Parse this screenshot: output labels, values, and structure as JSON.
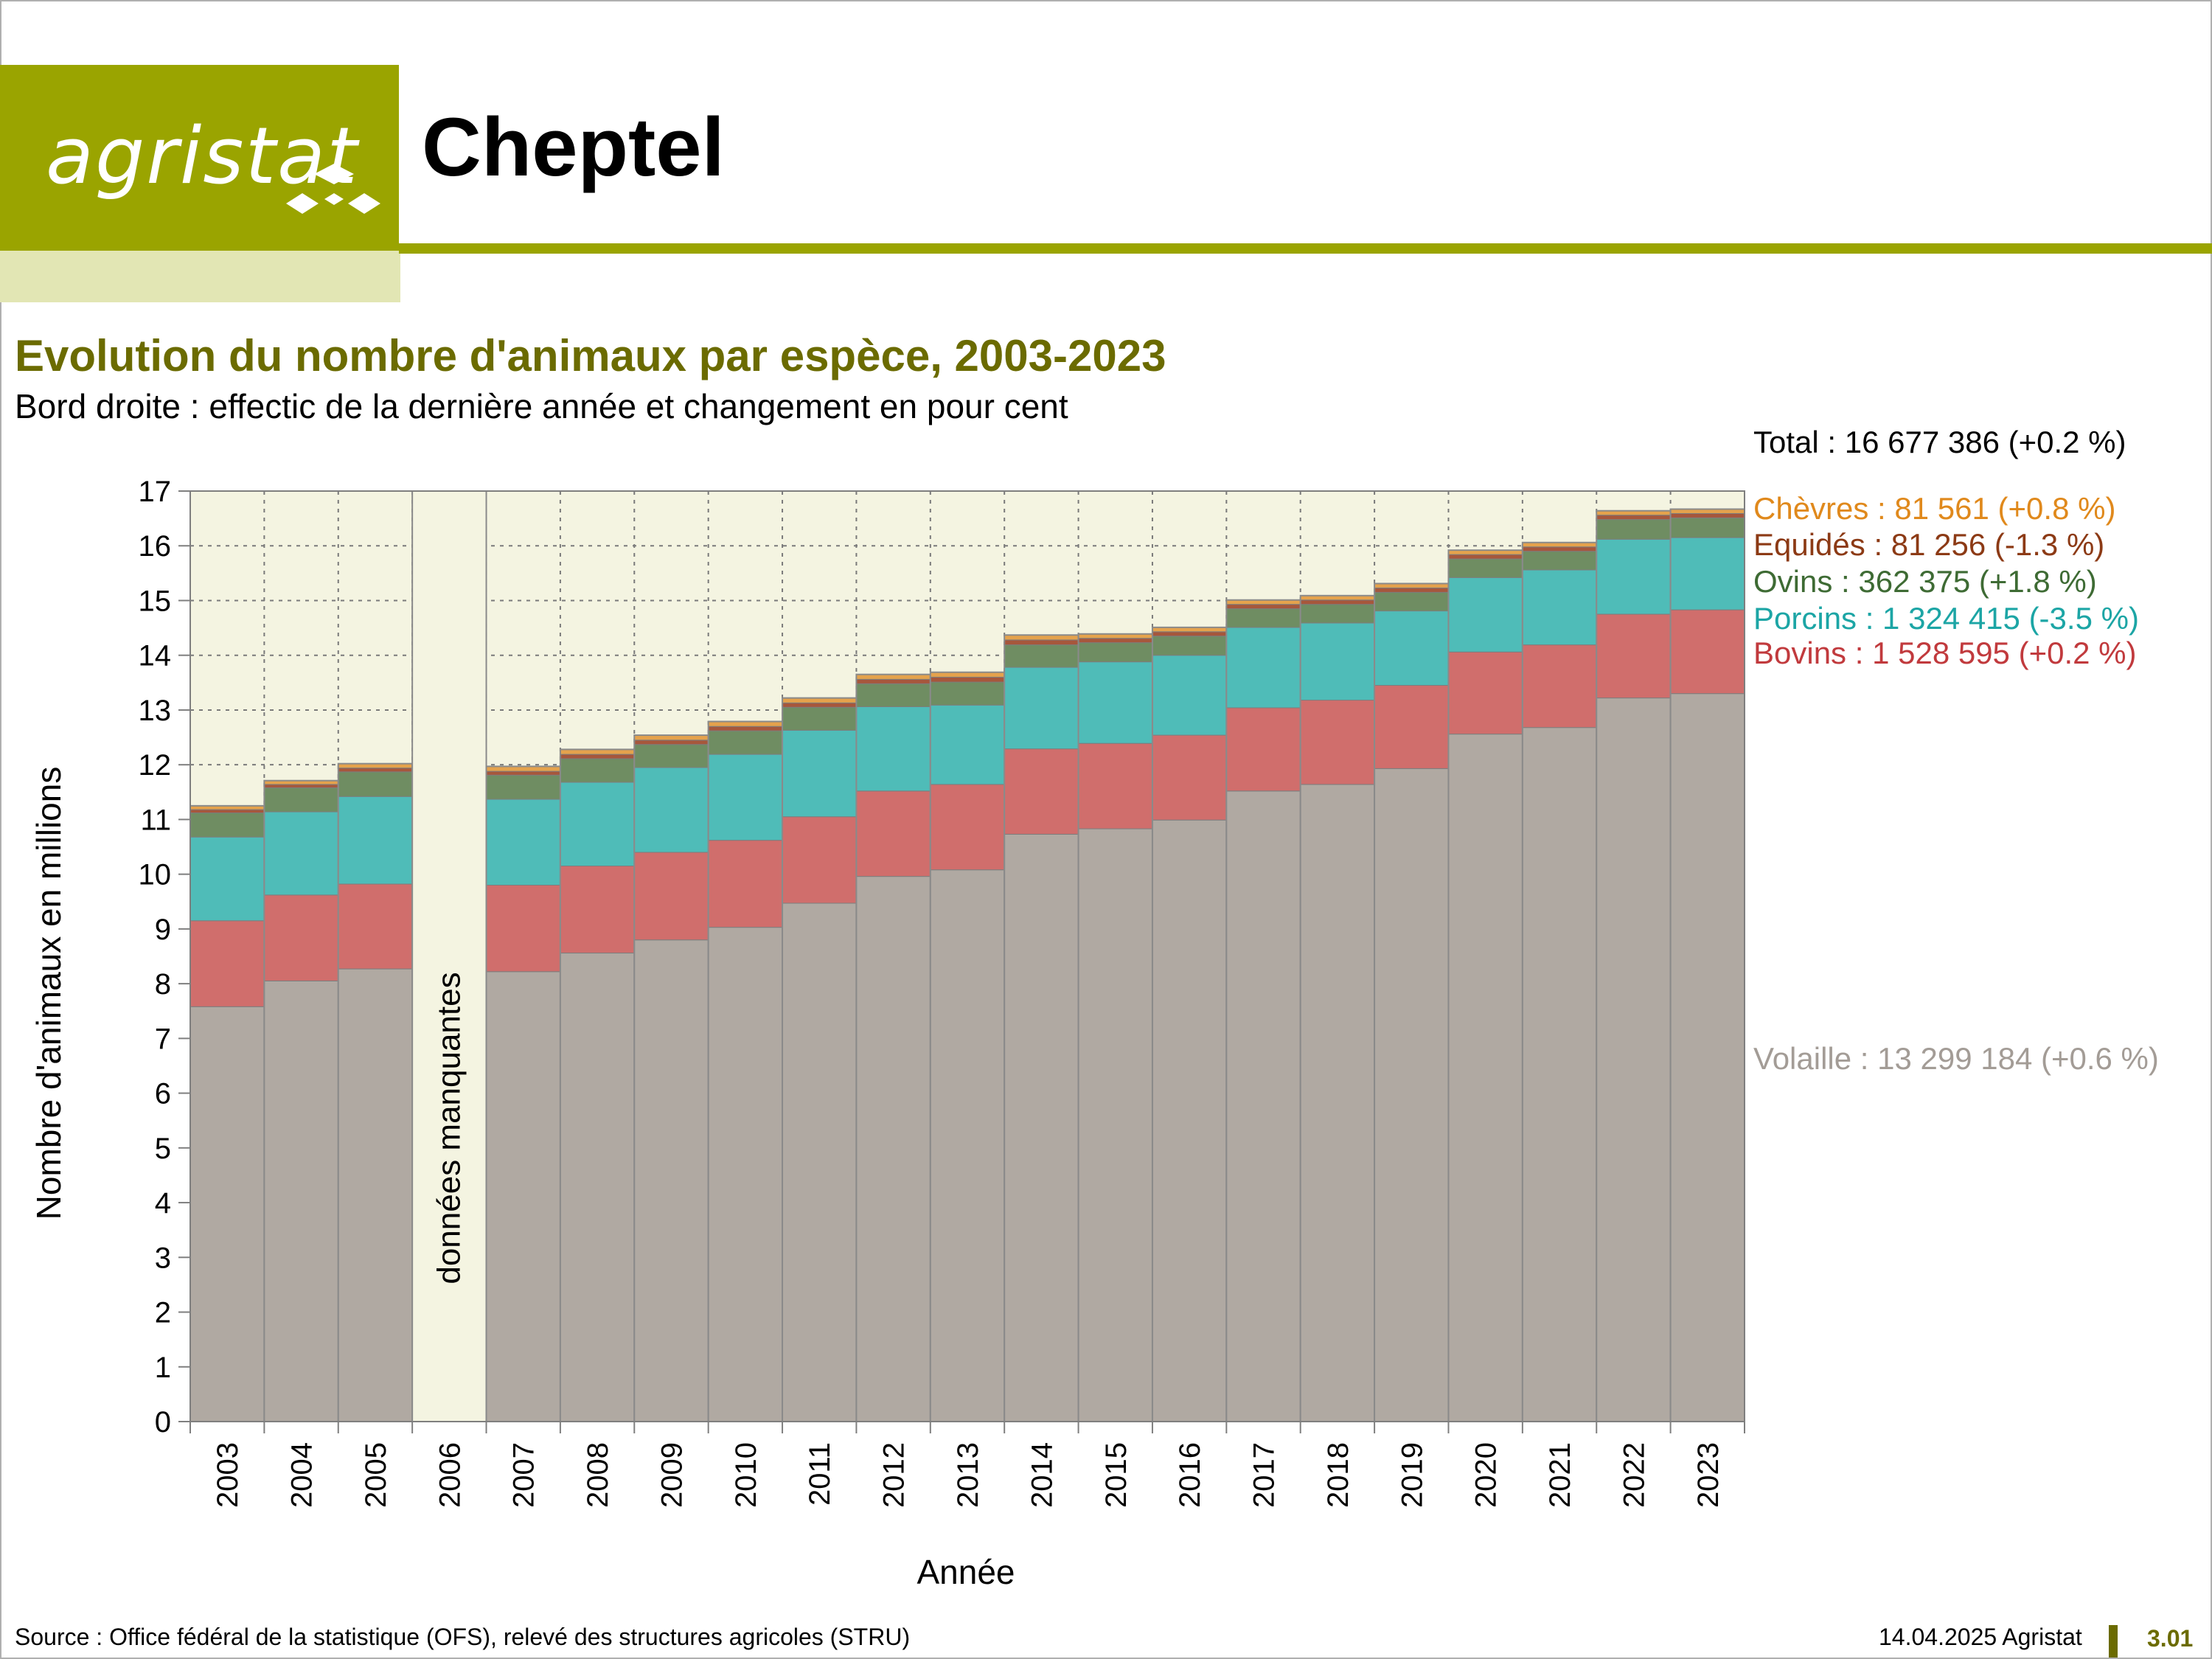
{
  "header": {
    "logo_text": "agristat",
    "title": "Cheptel"
  },
  "chart_data": {
    "type": "bar",
    "stacked": true,
    "title": "Evolution du nombre d'animaux par espèce, 2003-2023",
    "subtitle": "Bord droite : effectic de la dernière année et changement en pour cent",
    "xlabel": "Année",
    "ylabel": "Nombre d'animaux en millions",
    "ylim": [
      0,
      17
    ],
    "yticks": [
      "0",
      "1",
      "2",
      "3",
      "4",
      "5",
      "6",
      "7",
      "8",
      "9",
      "10",
      "11",
      "12",
      "13",
      "14",
      "15",
      "16",
      "17"
    ],
    "grid": true,
    "categories": [
      "2003",
      "2004",
      "2005",
      "2006",
      "2007",
      "2008",
      "2009",
      "2010",
      "2011",
      "2012",
      "2013",
      "2014",
      "2015",
      "2016",
      "2017",
      "2018",
      "2019",
      "2020",
      "2021",
      "2022",
      "2023"
    ],
    "missing_label": "données manquantes",
    "total_label": "Total : 16 677 386 (+0.2 %)",
    "series": [
      {
        "name": "Volaille",
        "color": "#b0a9a2",
        "label": "Volaille : 13 299 184 (+0.6 %)",
        "label_color": "#a39c96",
        "values": [
          7.58,
          8.05,
          8.27,
          null,
          8.22,
          8.56,
          8.8,
          9.03,
          9.47,
          9.96,
          10.08,
          10.73,
          10.83,
          10.99,
          11.52,
          11.64,
          11.93,
          12.56,
          12.68,
          13.22,
          13.3
        ]
      },
      {
        "name": "Bovins",
        "color": "#d06e6c",
        "label": "Bovins : 1 528 595 (+0.2 %)",
        "label_color": "#c13a3d",
        "values": [
          1.57,
          1.57,
          1.55,
          null,
          1.58,
          1.59,
          1.6,
          1.59,
          1.58,
          1.56,
          1.56,
          1.56,
          1.56,
          1.55,
          1.52,
          1.54,
          1.52,
          1.5,
          1.51,
          1.53,
          1.53
        ]
      },
      {
        "name": "Porcins",
        "color": "#4fbcb8",
        "label": "Porcins : 1 324 415 (-3.5 %)",
        "label_color": "#1ca5a5",
        "values": [
          1.53,
          1.52,
          1.6,
          null,
          1.57,
          1.53,
          1.55,
          1.57,
          1.58,
          1.54,
          1.45,
          1.49,
          1.49,
          1.46,
          1.47,
          1.41,
          1.36,
          1.36,
          1.37,
          1.37,
          1.32
        ]
      },
      {
        "name": "Ovins",
        "color": "#6f8d62",
        "label": "Ovins : 362 375 (+1.8 %)",
        "label_color": "#3e6b34",
        "values": [
          0.44,
          0.44,
          0.45,
          null,
          0.44,
          0.43,
          0.42,
          0.43,
          0.42,
          0.42,
          0.42,
          0.41,
          0.35,
          0.35,
          0.34,
          0.34,
          0.34,
          0.34,
          0.34,
          0.36,
          0.36
        ]
      },
      {
        "name": "Equidés",
        "color": "#a6573c",
        "label": "Equidés : 81 256 (-1.3 %)",
        "label_color": "#8c3a15",
        "values": [
          0.06,
          0.06,
          0.07,
          null,
          0.07,
          0.08,
          0.08,
          0.08,
          0.08,
          0.08,
          0.09,
          0.09,
          0.08,
          0.08,
          0.08,
          0.08,
          0.08,
          0.08,
          0.08,
          0.08,
          0.08
        ]
      },
      {
        "name": "Chèvres",
        "color": "#e5a24c",
        "label": "Chèvres : 81 561 (+0.8 %)",
        "label_color": "#e0891c",
        "values": [
          0.07,
          0.07,
          0.08,
          null,
          0.09,
          0.09,
          0.09,
          0.09,
          0.09,
          0.09,
          0.09,
          0.09,
          0.08,
          0.08,
          0.08,
          0.08,
          0.08,
          0.08,
          0.08,
          0.08,
          0.08
        ]
      }
    ],
    "colors": {
      "plot_bg": "#f4f4e1",
      "grid": "#7a7a7a",
      "axis": "#7f7f7f"
    }
  },
  "footer": {
    "source": "Source : Office fédéral de la statistique (OFS), relevé des structures agricoles (STRU)",
    "date": "14.04.2025 Agristat",
    "page": "3.01"
  }
}
